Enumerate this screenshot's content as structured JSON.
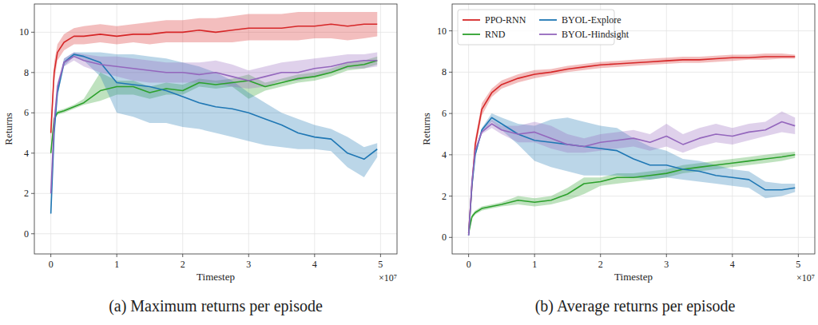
{
  "chart_data": [
    {
      "type": "line",
      "title": "(a) Maximum returns per episode",
      "xlabel": "Timestep",
      "ylabel": "Returns",
      "x_offset_label": "×10⁷",
      "x": [
        0,
        0.05,
        0.1,
        0.2,
        0.35,
        0.5,
        0.75,
        1.0,
        1.25,
        1.5,
        1.75,
        2.0,
        2.25,
        2.5,
        2.75,
        3.0,
        3.25,
        3.5,
        3.75,
        4.0,
        4.25,
        4.5,
        4.75,
        4.95
      ],
      "xlim": [
        -0.25,
        5.25
      ],
      "xticks": [
        0,
        1,
        2,
        3,
        4,
        5
      ],
      "ylim": [
        -1,
        11.4
      ],
      "yticks": [
        0,
        2,
        4,
        6,
        8,
        10
      ],
      "grid": true,
      "series": [
        {
          "color": "#d62728",
          "values": [
            5.0,
            8.0,
            9.0,
            9.5,
            9.8,
            9.8,
            9.9,
            9.8,
            9.9,
            9.9,
            10.0,
            10.0,
            10.1,
            10.0,
            10.1,
            10.2,
            10.2,
            10.2,
            10.3,
            10.3,
            10.4,
            10.3,
            10.4,
            10.4
          ],
          "lower": [
            4.5,
            7.5,
            8.6,
            9.1,
            9.4,
            9.4,
            9.5,
            9.4,
            9.5,
            9.4,
            9.5,
            9.5,
            9.5,
            9.5,
            9.5,
            9.6,
            9.6,
            9.6,
            9.6,
            9.7,
            9.7,
            9.6,
            9.7,
            9.8
          ],
          "upper": [
            5.5,
            8.5,
            9.4,
            9.9,
            10.2,
            10.3,
            10.4,
            10.3,
            10.4,
            10.5,
            10.6,
            10.6,
            10.7,
            10.7,
            10.8,
            10.9,
            10.9,
            10.9,
            11.0,
            11.0,
            11.0,
            11.0,
            11.0,
            11.0
          ]
        },
        {
          "color": "#2ca02c",
          "values": [
            4.0,
            5.7,
            6.0,
            6.1,
            6.3,
            6.5,
            7.1,
            7.3,
            7.3,
            7.0,
            7.2,
            7.1,
            7.5,
            7.4,
            7.5,
            7.6,
            7.3,
            7.5,
            7.7,
            7.8,
            8.0,
            8.3,
            8.4,
            8.6
          ],
          "lower": [
            3.9,
            5.6,
            5.9,
            6.0,
            6.2,
            6.4,
            6.6,
            6.9,
            6.9,
            6.7,
            6.9,
            6.9,
            7.3,
            7.2,
            7.3,
            6.7,
            7.1,
            7.3,
            7.5,
            7.6,
            7.8,
            8.1,
            8.2,
            8.4
          ],
          "upper": [
            4.1,
            5.8,
            6.1,
            6.2,
            6.4,
            6.7,
            8.0,
            7.6,
            7.6,
            7.3,
            7.5,
            7.4,
            7.7,
            7.6,
            7.7,
            7.9,
            7.5,
            7.7,
            7.9,
            8.0,
            8.2,
            8.5,
            8.6,
            8.8
          ]
        },
        {
          "color": "#1f77b4",
          "values": [
            1.0,
            5.0,
            7.0,
            8.5,
            8.9,
            8.8,
            8.5,
            7.5,
            7.4,
            7.3,
            7.1,
            6.8,
            6.5,
            6.3,
            6.2,
            6.0,
            5.7,
            5.4,
            5.0,
            4.8,
            4.7,
            4.0,
            3.7,
            4.2
          ],
          "lower": [
            0.9,
            4.8,
            6.8,
            8.3,
            8.8,
            8.6,
            7.8,
            6.0,
            5.8,
            5.5,
            5.5,
            5.3,
            5.2,
            5.0,
            4.8,
            4.6,
            4.4,
            4.3,
            4.2,
            4.2,
            4.1,
            3.3,
            2.8,
            3.8
          ],
          "upper": [
            1.1,
            5.2,
            7.2,
            8.7,
            9.0,
            9.0,
            9.0,
            8.9,
            8.9,
            8.8,
            8.7,
            8.5,
            8.3,
            8.0,
            7.6,
            7.0,
            6.5,
            6.0,
            5.7,
            5.4,
            5.2,
            4.8,
            4.3,
            4.5
          ]
        },
        {
          "color": "#9467bd",
          "values": [
            2.0,
            5.5,
            7.3,
            8.5,
            8.8,
            8.6,
            8.4,
            8.3,
            8.2,
            8.1,
            8.0,
            8.0,
            7.9,
            8.0,
            7.8,
            7.6,
            7.8,
            8.0,
            8.0,
            8.2,
            8.3,
            8.5,
            8.6,
            8.6
          ],
          "lower": [
            1.9,
            5.3,
            7.1,
            8.3,
            8.6,
            8.3,
            8.0,
            7.8,
            7.6,
            7.5,
            7.5,
            7.5,
            7.5,
            7.5,
            7.3,
            7.2,
            7.3,
            7.6,
            7.6,
            7.8,
            8.0,
            8.2,
            8.2,
            8.3
          ],
          "upper": [
            2.1,
            5.7,
            7.5,
            8.7,
            9.0,
            8.9,
            8.8,
            8.8,
            8.7,
            8.6,
            8.5,
            8.5,
            8.5,
            8.6,
            8.4,
            8.1,
            8.3,
            8.5,
            8.6,
            8.7,
            8.8,
            8.9,
            8.9,
            9.0
          ]
        }
      ]
    },
    {
      "type": "line",
      "title": "(b) Average returns per episode",
      "xlabel": "Timestep",
      "ylabel": "Returns",
      "x_offset_label": "×10⁷",
      "x": [
        0,
        0.05,
        0.1,
        0.2,
        0.35,
        0.5,
        0.75,
        1.0,
        1.25,
        1.5,
        1.75,
        2.0,
        2.25,
        2.5,
        2.75,
        3.0,
        3.25,
        3.5,
        3.75,
        4.0,
        4.25,
        4.5,
        4.75,
        4.95
      ],
      "xlim": [
        -0.25,
        5.25
      ],
      "xticks": [
        0,
        1,
        2,
        3,
        4,
        5
      ],
      "ylim": [
        -0.8,
        11.3
      ],
      "yticks": [
        0,
        2,
        4,
        6,
        8,
        10
      ],
      "grid": true,
      "legend": "upper left",
      "series": [
        {
          "name": "PPO-RNN",
          "color": "#d62728",
          "values": [
            0.2,
            2.5,
            4.5,
            6.2,
            7.0,
            7.4,
            7.7,
            7.9,
            8.0,
            8.15,
            8.25,
            8.35,
            8.4,
            8.45,
            8.5,
            8.55,
            8.6,
            8.6,
            8.65,
            8.7,
            8.7,
            8.75,
            8.75,
            8.75
          ],
          "lower": [
            0.1,
            2.3,
            4.2,
            5.9,
            6.8,
            7.2,
            7.5,
            7.7,
            7.85,
            8.0,
            8.1,
            8.2,
            8.25,
            8.3,
            8.35,
            8.4,
            8.45,
            8.45,
            8.5,
            8.55,
            8.6,
            8.6,
            8.65,
            8.65
          ],
          "upper": [
            0.3,
            2.7,
            4.8,
            6.5,
            7.2,
            7.6,
            7.9,
            8.1,
            8.15,
            8.3,
            8.4,
            8.5,
            8.55,
            8.6,
            8.65,
            8.7,
            8.75,
            8.75,
            8.8,
            8.85,
            8.85,
            8.9,
            8.9,
            8.85
          ]
        },
        {
          "name": "RND",
          "color": "#2ca02c",
          "values": [
            0.2,
            1.0,
            1.2,
            1.4,
            1.5,
            1.6,
            1.8,
            1.7,
            1.8,
            2.1,
            2.6,
            2.7,
            2.9,
            2.9,
            3.0,
            3.1,
            3.3,
            3.4,
            3.5,
            3.6,
            3.7,
            3.8,
            3.9,
            4.0
          ],
          "lower": [
            0.15,
            0.9,
            1.1,
            1.3,
            1.4,
            1.5,
            1.6,
            1.5,
            1.6,
            1.8,
            2.1,
            2.5,
            2.6,
            2.7,
            2.8,
            2.9,
            3.1,
            3.2,
            3.3,
            3.4,
            3.5,
            3.6,
            3.7,
            3.85
          ],
          "upper": [
            0.25,
            1.1,
            1.3,
            1.5,
            1.6,
            1.7,
            2.0,
            1.9,
            2.0,
            2.4,
            2.9,
            2.9,
            3.1,
            3.1,
            3.2,
            3.3,
            3.5,
            3.6,
            3.7,
            3.8,
            3.9,
            4.0,
            4.1,
            4.15
          ]
        },
        {
          "name": "BYOL-Explore",
          "color": "#1f77b4",
          "values": [
            0.1,
            2.5,
            4.0,
            5.2,
            5.8,
            5.5,
            5.0,
            4.7,
            4.6,
            4.5,
            4.4,
            4.3,
            4.2,
            3.8,
            3.5,
            3.5,
            3.3,
            3.2,
            3.0,
            2.9,
            2.8,
            2.3,
            2.3,
            2.4
          ],
          "lower": [
            0.05,
            2.4,
            3.9,
            5.1,
            5.6,
            5.2,
            4.5,
            3.7,
            3.4,
            3.2,
            3.0,
            3.0,
            3.0,
            2.9,
            2.8,
            2.9,
            2.8,
            2.7,
            2.6,
            2.5,
            2.4,
            1.9,
            2.0,
            2.2
          ],
          "upper": [
            0.15,
            2.6,
            4.1,
            5.3,
            6.0,
            5.8,
            5.5,
            5.4,
            5.7,
            5.8,
            5.6,
            5.4,
            5.3,
            4.8,
            4.4,
            4.2,
            3.8,
            3.7,
            3.5,
            3.3,
            3.2,
            2.7,
            2.6,
            2.6
          ]
        },
        {
          "name": "BYOL-Hindsight",
          "color": "#9467bd",
          "values": [
            0.1,
            2.7,
            4.2,
            5.1,
            5.5,
            5.2,
            5.0,
            5.1,
            4.8,
            4.5,
            4.4,
            4.6,
            4.7,
            4.8,
            4.6,
            4.9,
            4.5,
            4.8,
            5.0,
            4.9,
            5.1,
            5.2,
            5.6,
            5.4
          ],
          "lower": [
            0.05,
            2.6,
            4.1,
            5.0,
            5.3,
            5.0,
            4.6,
            4.6,
            4.3,
            4.1,
            4.1,
            4.2,
            4.3,
            4.4,
            4.2,
            4.4,
            4.1,
            4.4,
            4.6,
            4.5,
            4.7,
            4.9,
            5.1,
            5.0
          ],
          "upper": [
            0.15,
            2.8,
            4.3,
            5.2,
            5.7,
            5.4,
            5.4,
            5.6,
            5.4,
            5.0,
            4.8,
            5.0,
            5.1,
            5.2,
            5.0,
            5.5,
            5.0,
            5.3,
            5.5,
            5.3,
            5.5,
            5.6,
            6.1,
            5.8
          ]
        }
      ]
    }
  ]
}
